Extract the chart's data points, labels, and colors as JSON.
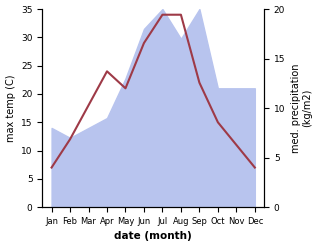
{
  "months": [
    "Jan",
    "Feb",
    "Mar",
    "Apr",
    "May",
    "Jun",
    "Jul",
    "Aug",
    "Sep",
    "Oct",
    "Nov",
    "Dec"
  ],
  "temperature": [
    7,
    12,
    18,
    24,
    21,
    29,
    34,
    34,
    22,
    15,
    11,
    7
  ],
  "precipitation": [
    8,
    7,
    8,
    9,
    13,
    18,
    20,
    17,
    20,
    12,
    12,
    12
  ],
  "temp_color": "#9e3a47",
  "precip_color": "#b8c4ee",
  "xlabel": "date (month)",
  "ylabel_left": "max temp (C)",
  "ylabel_right": "med. precipitation\n(kg/m2)",
  "ylim_left": [
    0,
    35
  ],
  "ylim_right": [
    0,
    20
  ],
  "yticks_left": [
    0,
    5,
    10,
    15,
    20,
    25,
    30,
    35
  ],
  "yticks_right": [
    0,
    5,
    10,
    15,
    20
  ],
  "background_color": "#ffffff"
}
